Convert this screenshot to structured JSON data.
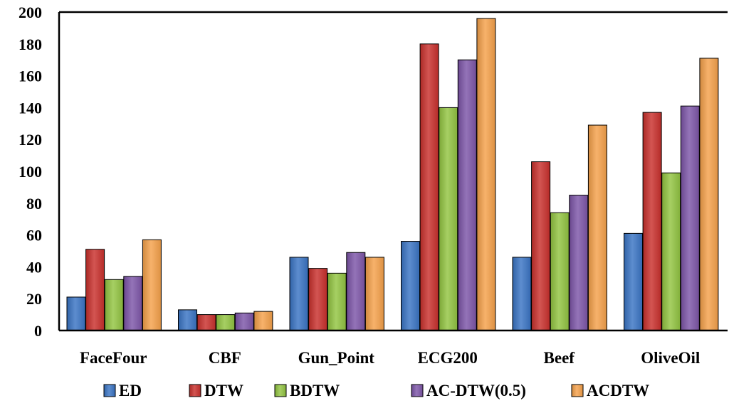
{
  "chart_data": {
    "type": "bar",
    "categories": [
      "FaceFour",
      "CBF",
      "Gun_Point",
      "ECG200",
      "Beef",
      "OliveOil"
    ],
    "series": [
      {
        "name": "ED",
        "color": "#3a74c4",
        "values": [
          21,
          13,
          46,
          56,
          46,
          61
        ]
      },
      {
        "name": "DTW",
        "color": "#c9302c",
        "values": [
          51,
          10,
          39,
          180,
          106,
          137
        ]
      },
      {
        "name": "BDTW",
        "color": "#92c441",
        "values": [
          32,
          10,
          36,
          140,
          74,
          99
        ]
      },
      {
        "name": "AC-DTW(0.5)",
        "color": "#7d55a8",
        "values": [
          34,
          11,
          49,
          170,
          85,
          141
        ]
      },
      {
        "name": "ACDTW",
        "color": "#f5a14a",
        "values": [
          57,
          12,
          46,
          196,
          129,
          171
        ]
      }
    ],
    "ylim": [
      0,
      200
    ],
    "yticks": [
      "0",
      "20",
      "40",
      "60",
      "80",
      "100",
      "120",
      "140",
      "160",
      "180",
      "200"
    ],
    "xlabel": "",
    "ylabel": "",
    "legend": "bottom",
    "grid": false
  }
}
